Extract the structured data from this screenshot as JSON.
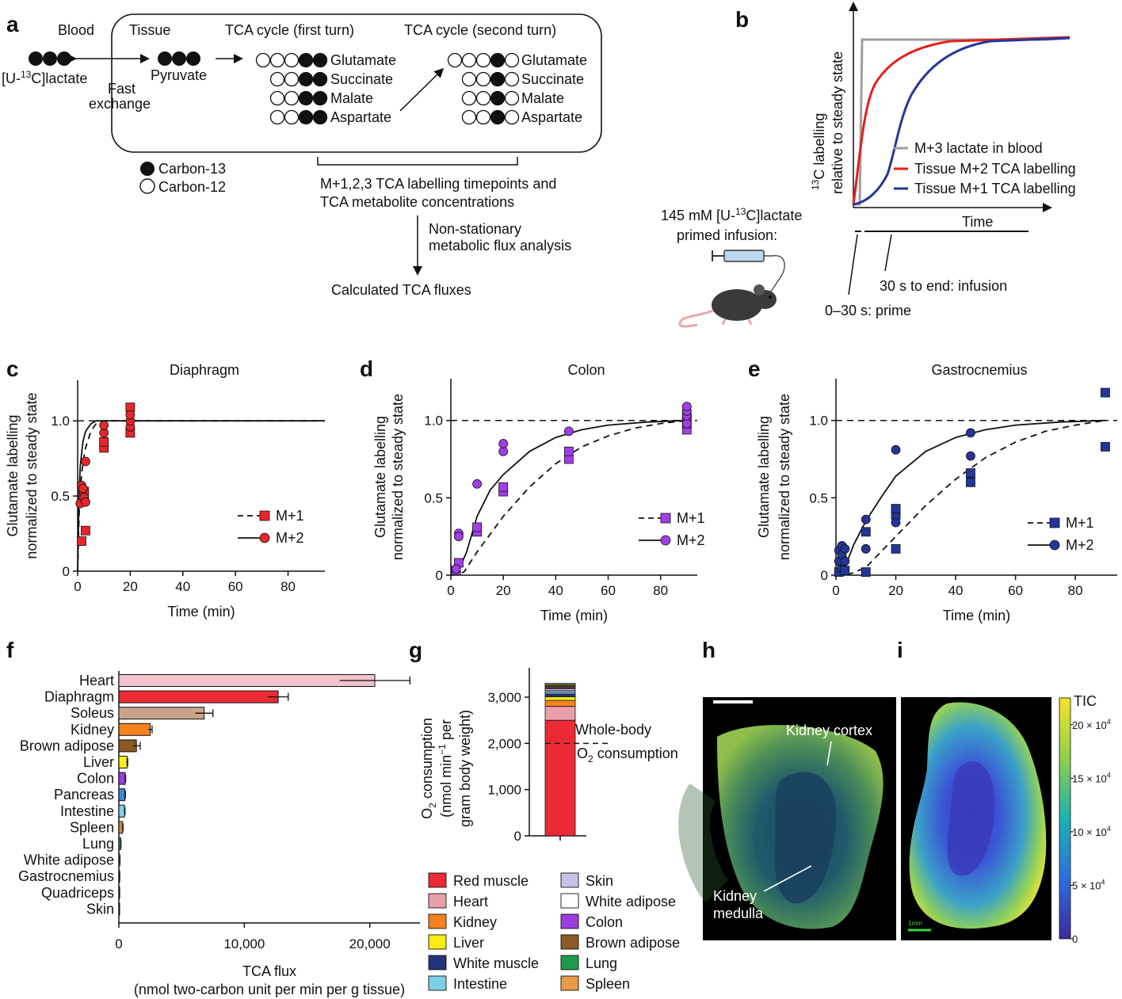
{
  "panel_letters": {
    "a": "a",
    "b": "b",
    "c": "c",
    "d": "d",
    "e": "e",
    "f": "f",
    "g": "g",
    "h": "h",
    "i": "i"
  },
  "panel_a": {
    "blood": "Blood",
    "tissue": "Tissue",
    "tca_first": "TCA cycle (first turn)",
    "tca_second": "TCA cycle (second turn)",
    "lactate_label": "[U-",
    "lactate_sup": "13",
    "lactate_rest": "C]lactate",
    "pyruvate": "Pyruvate",
    "fast_exchange_1": "Fast",
    "fast_exchange_2": "exchange",
    "metabolites": [
      "Glutamate",
      "Succinate",
      "Malate",
      "Aspartate"
    ],
    "legend_c13": "Carbon-13",
    "legend_c12": "Carbon-12",
    "timepoints_1": "M+1,2,3 TCA labelling timepoints and",
    "timepoints_2": "TCA metabolite concentrations",
    "nonstat_1": "Non-stationary",
    "nonstat_2": "metabolic flux analysis",
    "calculated": "Calculated TCA fluxes"
  },
  "panel_b": {
    "ylabel_sup": "13",
    "ylabel_1": "C labelling",
    "ylabel_2": "relative to steady state",
    "xlabel": "Time",
    "legend": [
      "M+3 lactate in blood",
      "Tissue M+2 TCA labelling",
      "Tissue M+1 TCA labelling"
    ],
    "colors": [
      "#9e9e9e",
      "#e3201b",
      "#24369a"
    ],
    "infusion_1": "145 mM [U-",
    "infusion_sup": "13",
    "infusion_2": "C]lactate",
    "infusion_3": "primed infusion:",
    "prime": "0–30 s: prime",
    "infusion_end": "30 s to end: infusion"
  },
  "chart_data": [
    {
      "panel": "c",
      "type": "scatter",
      "title": "Diaphragm",
      "xlabel": "Time (min)",
      "ylabel_1": "Glutamate labelling",
      "ylabel_2": "normalized to steady state",
      "xlim": [
        0,
        94
      ],
      "ylim": [
        0,
        1.27
      ],
      "xticks": [
        0,
        20,
        40,
        60,
        80
      ],
      "yticks": [
        0,
        0.5,
        1.0
      ],
      "ytick_labels": [
        "0",
        "0.5",
        "1.0"
      ],
      "color": "#e8262a",
      "legend": [
        "M+1",
        "M+2"
      ],
      "m1_points": [
        [
          1.5,
          0.2
        ],
        [
          2,
          0.5
        ],
        [
          2.5,
          0.53
        ],
        [
          3,
          0.27
        ],
        [
          10,
          0.82
        ],
        [
          10,
          0.86
        ],
        [
          20,
          0.92
        ],
        [
          20,
          1.09
        ]
      ],
      "m2_points": [
        [
          1,
          0.45
        ],
        [
          1.5,
          0.57
        ],
        [
          2,
          0.55
        ],
        [
          2.5,
          0.49
        ],
        [
          3,
          0.46
        ],
        [
          3,
          0.73
        ],
        [
          10,
          0.92
        ],
        [
          10,
          0.97
        ],
        [
          20,
          0.96
        ],
        [
          20,
          1.0
        ],
        [
          20,
          1.04
        ]
      ],
      "m1_fit": [
        [
          0,
          0
        ],
        [
          0.5,
          0.35
        ],
        [
          1,
          0.55
        ],
        [
          2,
          0.72
        ],
        [
          3,
          0.82
        ],
        [
          5,
          0.93
        ],
        [
          7,
          0.98
        ],
        [
          10,
          1.0
        ],
        [
          94,
          1.0
        ]
      ],
      "m2_fit": [
        [
          0,
          0
        ],
        [
          0.5,
          0.5
        ],
        [
          1,
          0.7
        ],
        [
          2,
          0.86
        ],
        [
          3,
          0.93
        ],
        [
          5,
          0.98
        ],
        [
          7,
          1.0
        ],
        [
          94,
          1.0
        ]
      ]
    },
    {
      "panel": "d",
      "type": "scatter",
      "title": "Colon",
      "xlabel": "Time (min)",
      "ylabel_1": "Glutamate labelling",
      "ylabel_2": "normalized to steady state",
      "xlim": [
        0,
        94
      ],
      "ylim": [
        0,
        1.27
      ],
      "xticks": [
        0,
        20,
        40,
        60,
        80
      ],
      "yticks": [
        0,
        0.5,
        1.0
      ],
      "ytick_labels": [
        "0",
        "0.5",
        "1.0"
      ],
      "color": "#a23ee8",
      "legend": [
        "M+1",
        "M+2"
      ],
      "m1_points": [
        [
          2,
          0.03
        ],
        [
          3,
          0.08
        ],
        [
          10,
          0.28
        ],
        [
          10,
          0.31
        ],
        [
          20,
          0.54
        ],
        [
          20,
          0.57
        ],
        [
          45,
          0.75
        ],
        [
          45,
          0.8
        ],
        [
          90,
          0.94
        ],
        [
          90,
          0.98
        ],
        [
          90,
          1.01
        ],
        [
          90,
          1.04
        ]
      ],
      "m2_points": [
        [
          2,
          0.04
        ],
        [
          3,
          0.27
        ],
        [
          3,
          0.25
        ],
        [
          10,
          0.59
        ],
        [
          20,
          0.8
        ],
        [
          20,
          0.85
        ],
        [
          45,
          0.93
        ],
        [
          90,
          0.98
        ],
        [
          90,
          1.03
        ],
        [
          90,
          1.06
        ],
        [
          90,
          1.09
        ]
      ],
      "m1_fit": [
        [
          0,
          0
        ],
        [
          5,
          0.02
        ],
        [
          10,
          0.15
        ],
        [
          20,
          0.38
        ],
        [
          30,
          0.57
        ],
        [
          40,
          0.72
        ],
        [
          50,
          0.83
        ],
        [
          60,
          0.9
        ],
        [
          70,
          0.95
        ],
        [
          80,
          0.98
        ],
        [
          90,
          1.0
        ]
      ],
      "m2_fit": [
        [
          0,
          0
        ],
        [
          3,
          0.03
        ],
        [
          6,
          0.15
        ],
        [
          10,
          0.38
        ],
        [
          15,
          0.55
        ],
        [
          20,
          0.65
        ],
        [
          30,
          0.8
        ],
        [
          40,
          0.89
        ],
        [
          50,
          0.94
        ],
        [
          60,
          0.97
        ],
        [
          75,
          0.99
        ],
        [
          90,
          1.0
        ]
      ]
    },
    {
      "panel": "e",
      "type": "scatter",
      "title": "Gastrocnemius",
      "xlabel": "Time (min)",
      "ylabel_1": "Glutamate labelling",
      "ylabel_2": "normalized to steady state",
      "xlim": [
        0,
        94
      ],
      "ylim": [
        0,
        1.27
      ],
      "xticks": [
        0,
        20,
        40,
        60,
        80
      ],
      "yticks": [
        0,
        0.5,
        1.0
      ],
      "ytick_labels": [
        "0",
        "0.5",
        "1.0"
      ],
      "color": "#24369a",
      "legend": [
        "M+1",
        "M+2"
      ],
      "m1_points": [
        [
          1,
          0.02
        ],
        [
          2,
          0.05
        ],
        [
          3,
          0.03
        ],
        [
          10,
          0.02
        ],
        [
          10,
          0.28
        ],
        [
          20,
          0.17
        ],
        [
          20,
          0.39
        ],
        [
          20,
          0.43
        ],
        [
          45,
          0.6
        ],
        [
          45,
          0.66
        ],
        [
          90,
          0.83
        ],
        [
          90,
          1.18
        ]
      ],
      "m2_points": [
        [
          1,
          0.09
        ],
        [
          1,
          0.16
        ],
        [
          2,
          0.19
        ],
        [
          2,
          0.13
        ],
        [
          3,
          0.09
        ],
        [
          3,
          0.17
        ],
        [
          10,
          0.17
        ],
        [
          10,
          0.36
        ],
        [
          20,
          0.34
        ],
        [
          20,
          0.81
        ],
        [
          45,
          0.77
        ],
        [
          45,
          0.92
        ]
      ],
      "m1_fit": [
        [
          0,
          0
        ],
        [
          5,
          0.01
        ],
        [
          10,
          0.05
        ],
        [
          20,
          0.25
        ],
        [
          30,
          0.45
        ],
        [
          40,
          0.62
        ],
        [
          50,
          0.76
        ],
        [
          60,
          0.86
        ],
        [
          70,
          0.93
        ],
        [
          80,
          0.97
        ],
        [
          90,
          1.0
        ]
      ],
      "m2_fit": [
        [
          0,
          0
        ],
        [
          3,
          0.05
        ],
        [
          6,
          0.2
        ],
        [
          10,
          0.35
        ],
        [
          15,
          0.5
        ],
        [
          20,
          0.64
        ],
        [
          30,
          0.8
        ],
        [
          40,
          0.89
        ],
        [
          50,
          0.94
        ],
        [
          60,
          0.97
        ],
        [
          75,
          0.99
        ],
        [
          90,
          1.0
        ]
      ]
    },
    {
      "panel": "f",
      "type": "bar",
      "orientation": "horizontal",
      "xlabel_1": "TCA flux",
      "xlabel_2": "(nmol two-carbon unit per min per g tissue)",
      "xlim": [
        0,
        24000
      ],
      "xticks": [
        0,
        10000,
        20000
      ],
      "xtick_labels": [
        "0",
        "10,000",
        "20,000"
      ],
      "categories": [
        "Heart",
        "Diaphragm",
        "Soleus",
        "Kidney",
        "Brown adipose",
        "Liver",
        "Colon",
        "Pancreas",
        "Intestine",
        "Spleen",
        "Lung",
        "White adipose",
        "Gastrocnemius",
        "Quadriceps",
        "Skin"
      ],
      "values": [
        20400,
        12700,
        6800,
        2500,
        1400,
        650,
        500,
        480,
        450,
        300,
        150,
        80,
        60,
        50,
        40
      ],
      "errors": [
        2800,
        800,
        700,
        150,
        300,
        60,
        40,
        40,
        40,
        30,
        20,
        10,
        10,
        10,
        10
      ],
      "colors": [
        "#f1c3cc",
        "#ec2a35",
        "#c8a58a",
        "#f5821f",
        "#8a5a22",
        "#f7ec14",
        "#9b3de0",
        "#3d86d6",
        "#7fd0e6",
        "#d08a3a",
        "#1f9a4a",
        "#ffffff",
        "#22337e",
        "#3f4aa8",
        "#c8c0e6"
      ]
    },
    {
      "panel": "g",
      "type": "bar",
      "orientation": "stacked",
      "ylabel_1": "O",
      "ylabel_sub": "2",
      "ylabel_2": " consumption",
      "ylabel_3": "(nmol min",
      "ylabel_sup": "−1",
      "ylabel_4": " per",
      "ylabel_5": "gram body weight)",
      "ylim": [
        0,
        3600
      ],
      "yticks": [
        0,
        1000,
        2000,
        3000
      ],
      "ytick_labels": [
        "0",
        "1,000",
        "2,000",
        "3,000"
      ],
      "reference_line": 2000,
      "reference_label_1": "Whole-body",
      "reference_label_2a": "O",
      "reference_label_sub": "2",
      "reference_label_2b": " consumption",
      "segments": [
        {
          "name": "Red muscle",
          "value": 2500,
          "color": "#ec2a35"
        },
        {
          "name": "Heart",
          "value": 300,
          "color": "#e9a0aa"
        },
        {
          "name": "Kidney",
          "value": 130,
          "color": "#f5821f"
        },
        {
          "name": "Liver",
          "value": 80,
          "color": "#f7ec14"
        },
        {
          "name": "White muscle",
          "value": 60,
          "color": "#22337e"
        },
        {
          "name": "Intestine",
          "value": 40,
          "color": "#7fd0e6"
        },
        {
          "name": "Skin",
          "value": 40,
          "color": "#c8c0e6"
        },
        {
          "name": "White adipose",
          "value": 30,
          "color": "#ffffff"
        },
        {
          "name": "Colon",
          "value": 30,
          "color": "#9b3de0"
        },
        {
          "name": "Brown adipose",
          "value": 30,
          "color": "#8a5a22"
        },
        {
          "name": "Lung",
          "value": 30,
          "color": "#1f9a4a"
        },
        {
          "name": "Spleen",
          "value": 30,
          "color": "#e89a4a"
        }
      ]
    },
    {
      "panel": "i",
      "type": "heatmap",
      "colorbar_title": "TIC",
      "colorbar_ticks": [
        "0",
        "5 × 10",
        "10 × 10",
        "15 × 10",
        "20 × 10"
      ],
      "colorbar_tick_sup": "4",
      "colorbar_values": [
        0,
        50000,
        100000,
        150000,
        200000
      ],
      "colorbar_max": 225000
    }
  ],
  "panel_h": {
    "cortex": "Kidney cortex",
    "medulla_1": "Kidney",
    "medulla_2": "medulla"
  },
  "panel_i": {
    "scale_label": "1mm"
  }
}
